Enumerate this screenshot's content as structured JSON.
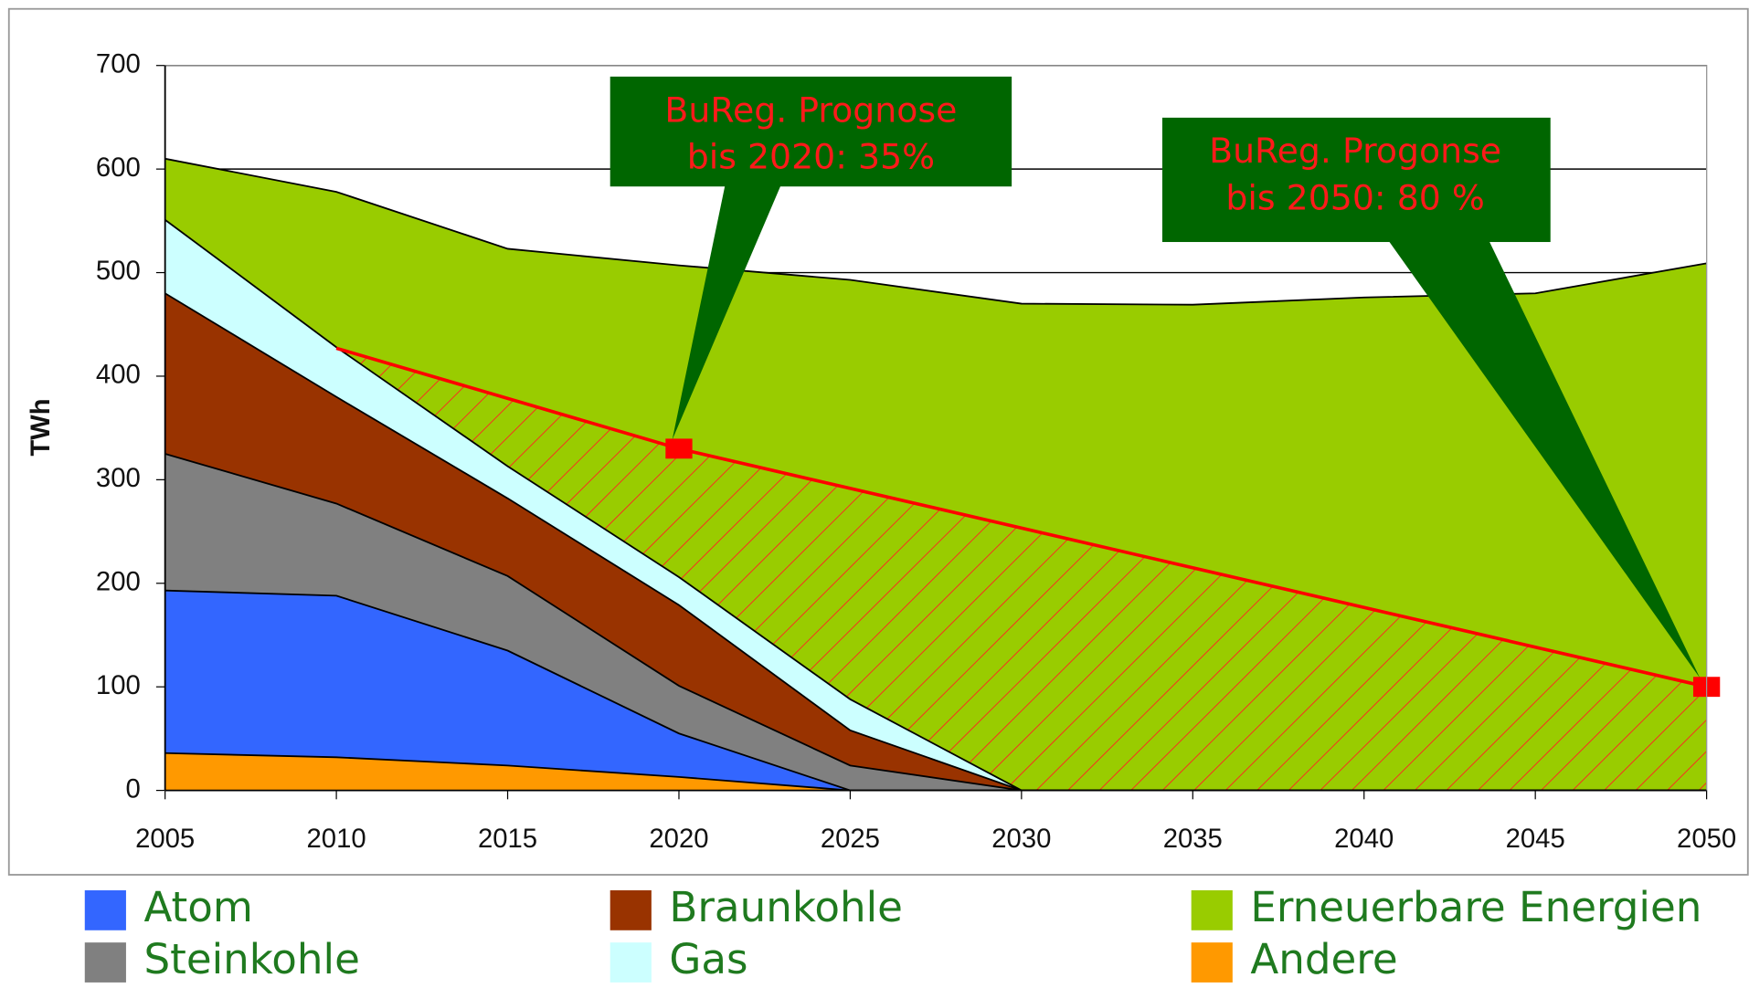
{
  "chart_data": {
    "type": "area",
    "stacked": true,
    "y_label": "TWh",
    "x": [
      2005,
      2010,
      2015,
      2020,
      2025,
      2030,
      2035,
      2040,
      2045,
      2050
    ],
    "xlim": [
      2005,
      2050
    ],
    "xticks": [
      2005,
      2010,
      2015,
      2020,
      2025,
      2030,
      2035,
      2040,
      2045,
      2050
    ],
    "ylim": [
      0,
      700
    ],
    "yticks": [
      0,
      100,
      200,
      300,
      400,
      500,
      600,
      700
    ],
    "grid": true,
    "series": [
      {
        "name": "Andere",
        "color": "#ff9900",
        "values": [
          36,
          32,
          24,
          13,
          0,
          0,
          0,
          0,
          0,
          0
        ]
      },
      {
        "name": "Atom",
        "color": "#3366ff",
        "values": [
          157,
          156,
          111,
          42,
          0,
          0,
          0,
          0,
          0,
          0
        ]
      },
      {
        "name": "Steinkohle",
        "color": "#808080",
        "values": [
          132,
          89,
          72,
          46,
          24,
          0,
          0,
          0,
          0,
          0
        ]
      },
      {
        "name": "Braunkohle",
        "color": "#993300",
        "values": [
          155,
          103,
          75,
          78,
          34,
          0,
          0,
          0,
          0,
          0
        ]
      },
      {
        "name": "Gas",
        "color": "#ccffff",
        "values": [
          71,
          48,
          31,
          27,
          30,
          0,
          0,
          0,
          0,
          0
        ]
      },
      {
        "name": "Erneuerbare Energien",
        "color": "#99cc00",
        "values": [
          59,
          150,
          210,
          301,
          405,
          470,
          469,
          476,
          480,
          509
        ]
      }
    ],
    "target_line": {
      "color": "#ff0000",
      "x": [
        2010,
        2020,
        2050
      ],
      "values": [
        427,
        330,
        100
      ]
    },
    "annotations": [
      {
        "lines": [
          "BuReg. Prognose",
          "bis 2020: 35%"
        ]
      },
      {
        "lines": [
          "BuReg. Progonse",
          "bis 2050: 80 %"
        ]
      }
    ]
  }
}
